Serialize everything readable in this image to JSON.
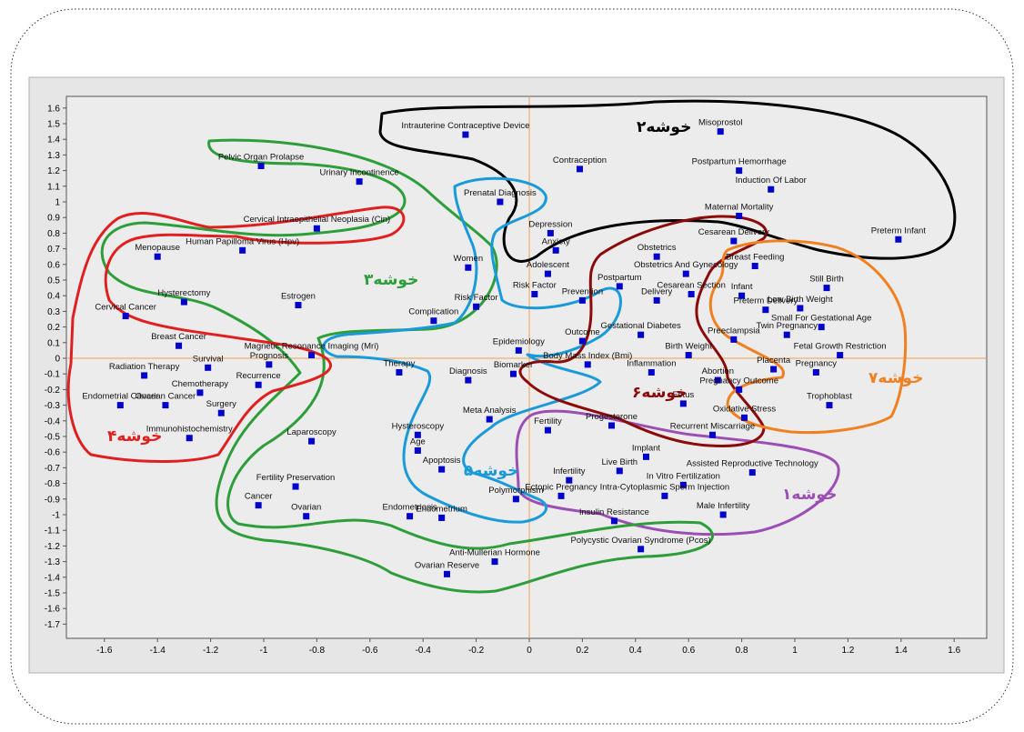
{
  "chart_data": {
    "type": "scatter",
    "title": "",
    "xlabel": "",
    "ylabel": "",
    "xlim": [
      -1.75,
      1.7
    ],
    "ylim": [
      -1.72,
      1.66
    ],
    "grid": false,
    "x_ticks": [
      "-1.6",
      "-1.4",
      "-1.2",
      "-1",
      "-0.8",
      "-0.6",
      "-0.4",
      "-0.2",
      "0",
      "0.2",
      "0.4",
      "0.6",
      "0.8",
      "1",
      "1.2",
      "1.4",
      "1.6"
    ],
    "y_ticks": [
      "1.6",
      "1.5",
      "1.4",
      "1.3",
      "1.2",
      "1.1",
      "1",
      "0.9",
      "0.8",
      "0.7",
      "0.6",
      "0.5",
      "0.4",
      "0.3",
      "0.2",
      "0.1",
      "0",
      "-0.1",
      "-0.2",
      "-0.3",
      "-0.4",
      "-0.5",
      "-0.6",
      "-0.7",
      "-0.8",
      "-0.9",
      "-1",
      "-1.1",
      "-1.2",
      "-1.3",
      "-1.4",
      "-1.5",
      "-1.6",
      "-1.7"
    ],
    "point_color": "#0000cc",
    "axis_line_color": "#f0a050",
    "points": [
      {
        "label": "Intrauterine Contraceptive Device",
        "x": -0.24,
        "y": 1.43
      },
      {
        "label": "Misoprostol",
        "x": 0.72,
        "y": 1.45
      },
      {
        "label": "Contraception",
        "x": 0.19,
        "y": 1.21
      },
      {
        "label": "Postpartum Hemorrhage",
        "x": 0.79,
        "y": 1.2
      },
      {
        "label": "Induction Of Labor",
        "x": 0.91,
        "y": 1.08
      },
      {
        "label": "Pelvic Organ Prolapse",
        "x": -1.01,
        "y": 1.23
      },
      {
        "label": "Urinary Incontinence",
        "x": -0.64,
        "y": 1.13
      },
      {
        "label": "Prenatal Diagnosis",
        "x": -0.11,
        "y": 1.0
      },
      {
        "label": "Maternal Mortality",
        "x": 0.79,
        "y": 0.91
      },
      {
        "label": "Cervical Intraepithelial Neoplasia (Cin)",
        "x": -0.8,
        "y": 0.83
      },
      {
        "label": "Depression",
        "x": 0.08,
        "y": 0.8
      },
      {
        "label": "Preterm Infant",
        "x": 1.39,
        "y": 0.76
      },
      {
        "label": "Cesarean Delivery",
        "x": 0.77,
        "y": 0.75
      },
      {
        "label": "Human Papilloma Virus (Hpv)",
        "x": -1.08,
        "y": 0.69
      },
      {
        "label": "Anxiety",
        "x": 0.1,
        "y": 0.69
      },
      {
        "label": "Obstetrics",
        "x": 0.48,
        "y": 0.65
      },
      {
        "label": "Menopause",
        "x": -1.4,
        "y": 0.65
      },
      {
        "label": "Women",
        "x": -0.23,
        "y": 0.58
      },
      {
        "label": "Breast Feeding",
        "x": 0.85,
        "y": 0.59
      },
      {
        "label": "Adolescent",
        "x": 0.07,
        "y": 0.54
      },
      {
        "label": "Obstetrics And Gynecology",
        "x": 0.59,
        "y": 0.54
      },
      {
        "label": "Still Birth",
        "x": 1.12,
        "y": 0.45
      },
      {
        "label": "Postpartum",
        "x": 0.34,
        "y": 0.46
      },
      {
        "label": "Cesarean Section",
        "x": 0.61,
        "y": 0.41
      },
      {
        "label": "Risk Factor",
        "x": 0.02,
        "y": 0.41
      },
      {
        "label": "Infant",
        "x": 0.8,
        "y": 0.4
      },
      {
        "label": "Low Birth Weight",
        "x": 1.02,
        "y": 0.32
      },
      {
        "label": "Hysterectomy",
        "x": -1.3,
        "y": 0.36
      },
      {
        "label": "Estrogen",
        "x": -0.87,
        "y": 0.34
      },
      {
        "label": "Prevention",
        "x": 0.2,
        "y": 0.37
      },
      {
        "label": "Delivery",
        "x": 0.48,
        "y": 0.37
      },
      {
        "label": "Preterm Delivery",
        "x": 0.89,
        "y": 0.31
      },
      {
        "label": "Complication",
        "x": -0.36,
        "y": 0.24
      },
      {
        "label": "Risk Factor (2)",
        "x": -0.2,
        "y": 0.33
      },
      {
        "label": "Cervical Cancer",
        "x": -1.52,
        "y": 0.27
      },
      {
        "label": "Small For Gestational Age",
        "x": 1.1,
        "y": 0.2
      },
      {
        "label": "Gestational Diabetes",
        "x": 0.42,
        "y": 0.15
      },
      {
        "label": "Preeclampsia",
        "x": 0.77,
        "y": 0.12
      },
      {
        "label": "Twin Pregnancy",
        "x": 0.97,
        "y": 0.15
      },
      {
        "label": "Breast Cancer",
        "x": -1.32,
        "y": 0.08
      },
      {
        "label": "Epidemiology",
        "x": -0.04,
        "y": 0.05
      },
      {
        "label": "Outcome",
        "x": 0.2,
        "y": 0.11
      },
      {
        "label": "Birth Weight",
        "x": 0.6,
        "y": 0.02
      },
      {
        "label": "Fetal Growth Restriction",
        "x": 1.17,
        "y": 0.02
      },
      {
        "label": "Magnetic Resonance Imaging (Mri)",
        "x": -0.82,
        "y": 0.02
      },
      {
        "label": "Body Mass Index (Bmi)",
        "x": 0.22,
        "y": -0.04
      },
      {
        "label": "Prognosis",
        "x": -0.98,
        "y": -0.04
      },
      {
        "label": "Radiation Therapy",
        "x": -1.45,
        "y": -0.11
      },
      {
        "label": "Survival",
        "x": -1.21,
        "y": -0.06
      },
      {
        "label": "Therapy",
        "x": -0.49,
        "y": -0.09
      },
      {
        "label": "Biomarker",
        "x": -0.06,
        "y": -0.1
      },
      {
        "label": "Inflammation",
        "x": 0.46,
        "y": -0.09
      },
      {
        "label": "Placenta",
        "x": 0.92,
        "y": -0.07
      },
      {
        "label": "Pregnancy",
        "x": 1.08,
        "y": -0.09
      },
      {
        "label": "Recurrence",
        "x": -1.02,
        "y": -0.17
      },
      {
        "label": "Diagnosis",
        "x": -0.23,
        "y": -0.14
      },
      {
        "label": "Abortion",
        "x": 0.71,
        "y": -0.14
      },
      {
        "label": "Pregnancy Outcome",
        "x": 0.79,
        "y": -0.2
      },
      {
        "label": "Chemotherapy",
        "x": -1.24,
        "y": -0.22
      },
      {
        "label": "Endometrial Cancer",
        "x": -1.54,
        "y": -0.3
      },
      {
        "label": "Ovarian Cancer",
        "x": -1.37,
        "y": -0.3
      },
      {
        "label": "Fetus",
        "x": 0.58,
        "y": -0.29
      },
      {
        "label": "Trophoblast",
        "x": 1.13,
        "y": -0.3
      },
      {
        "label": "Surgery",
        "x": -1.16,
        "y": -0.35
      },
      {
        "label": "Meta Analysis",
        "x": -0.15,
        "y": -0.39
      },
      {
        "label": "Oxidative Stress",
        "x": 0.81,
        "y": -0.38
      },
      {
        "label": "Fertility",
        "x": 0.07,
        "y": -0.46
      },
      {
        "label": "Progesterone",
        "x": 0.31,
        "y": -0.43
      },
      {
        "label": "Recurrent Miscarriage",
        "x": 0.69,
        "y": -0.49
      },
      {
        "label": "Immunohistochemistry",
        "x": -1.28,
        "y": -0.51
      },
      {
        "label": "Laparoscopy",
        "x": -0.82,
        "y": -0.53
      },
      {
        "label": "Hysteroscopy",
        "x": -0.42,
        "y": -0.49
      },
      {
        "label": "Age",
        "x": -0.42,
        "y": -0.59
      },
      {
        "label": "Implant",
        "x": 0.44,
        "y": -0.63
      },
      {
        "label": "Apoptosis",
        "x": -0.33,
        "y": -0.71
      },
      {
        "label": "Live Birth",
        "x": 0.34,
        "y": -0.72
      },
      {
        "label": "Assisted Reproductive Technology",
        "x": 0.84,
        "y": -0.73
      },
      {
        "label": "Fertility Preservation",
        "x": -0.88,
        "y": -0.82
      },
      {
        "label": "Infertility",
        "x": 0.15,
        "y": -0.78
      },
      {
        "label": "In Vitro Fertilization",
        "x": 0.58,
        "y": -0.81
      },
      {
        "label": "Ectopic Pregnancy",
        "x": 0.12,
        "y": -0.88
      },
      {
        "label": "Cancer",
        "x": -1.02,
        "y": -0.94
      },
      {
        "label": "Polymorphism",
        "x": -0.05,
        "y": -0.9
      },
      {
        "label": "Intra-Cytoplasmic Sperm Injection",
        "x": 0.51,
        "y": -0.88
      },
      {
        "label": "Ovarian",
        "x": -0.84,
        "y": -1.01
      },
      {
        "label": "Endometriosis",
        "x": -0.45,
        "y": -1.01
      },
      {
        "label": "Endometrium",
        "x": -0.33,
        "y": -1.02
      },
      {
        "label": "Insulin Resistance",
        "x": 0.32,
        "y": -1.04
      },
      {
        "label": "Male Infertility",
        "x": 0.73,
        "y": -1.0
      },
      {
        "label": "Polycystic Ovarian Syndrome (Pcos)",
        "x": 0.42,
        "y": -1.22
      },
      {
        "label": "Anti-Mullerian Hormone",
        "x": -0.13,
        "y": -1.3
      },
      {
        "label": "Ovarian Reserve",
        "x": -0.31,
        "y": -1.38
      }
    ],
    "clusters": [
      {
        "name": "خوشه۱",
        "color": "#9b4fb5"
      },
      {
        "name": "خوشه۲",
        "color": "#000000"
      },
      {
        "name": "خوشه۳",
        "color": "#2e9e3a"
      },
      {
        "name": "خوشه۴",
        "color": "#e02020"
      },
      {
        "name": "خوشه۵",
        "color": "#1a9ad9"
      },
      {
        "name": "خوشه۶",
        "color": "#8b0a0a"
      },
      {
        "name": "خوشه۷",
        "color": "#f08020"
      }
    ]
  }
}
